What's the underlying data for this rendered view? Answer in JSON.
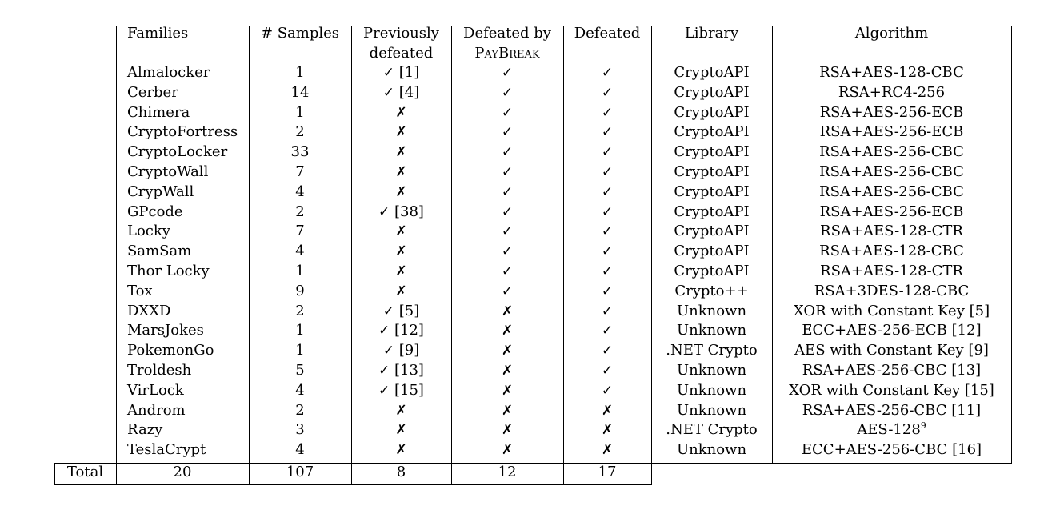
{
  "headers": {
    "families": "Families",
    "samples": "# Samples",
    "prev_line1": "Previously",
    "prev_line2": "defeated",
    "paybreak_line1": "Defeated by",
    "paybreak_line2": "PayBreak",
    "defeated": "Defeated",
    "library": "Library",
    "algorithm": "Algorithm"
  },
  "rows": [
    {
      "family": "Almalocker",
      "samples": "1",
      "prev": "✓ [1]",
      "paybreak": "✓",
      "defeated": "✓",
      "library": "CryptoAPI",
      "algorithm": "RSA+AES-128-CBC"
    },
    {
      "family": "Cerber",
      "samples": "14",
      "prev": "✓ [4]",
      "paybreak": "✓",
      "defeated": "✓",
      "library": "CryptoAPI",
      "algorithm": "RSA+RC4-256"
    },
    {
      "family": "Chimera",
      "samples": "1",
      "prev": "✗",
      "paybreak": "✓",
      "defeated": "✓",
      "library": "CryptoAPI",
      "algorithm": "RSA+AES-256-ECB"
    },
    {
      "family": "CryptoFortress",
      "samples": "2",
      "prev": "✗",
      "paybreak": "✓",
      "defeated": "✓",
      "library": "CryptoAPI",
      "algorithm": "RSA+AES-256-ECB"
    },
    {
      "family": "CryptoLocker",
      "samples": "33",
      "prev": "✗",
      "paybreak": "✓",
      "defeated": "✓",
      "library": "CryptoAPI",
      "algorithm": "RSA+AES-256-CBC"
    },
    {
      "family": "CryptoWall",
      "samples": "7",
      "prev": "✗",
      "paybreak": "✓",
      "defeated": "✓",
      "library": "CryptoAPI",
      "algorithm": "RSA+AES-256-CBC"
    },
    {
      "family": "CrypWall",
      "samples": "4",
      "prev": "✗",
      "paybreak": "✓",
      "defeated": "✓",
      "library": "CryptoAPI",
      "algorithm": "RSA+AES-256-CBC"
    },
    {
      "family": "GPcode",
      "samples": "2",
      "prev": "✓ [38]",
      "paybreak": "✓",
      "defeated": "✓",
      "library": "CryptoAPI",
      "algorithm": "RSA+AES-256-ECB"
    },
    {
      "family": "Locky",
      "samples": "7",
      "prev": "✗",
      "paybreak": "✓",
      "defeated": "✓",
      "library": "CryptoAPI",
      "algorithm": "RSA+AES-128-CTR"
    },
    {
      "family": "SamSam",
      "samples": "4",
      "prev": "✗",
      "paybreak": "✓",
      "defeated": "✓",
      "library": "CryptoAPI",
      "algorithm": "RSA+AES-128-CBC"
    },
    {
      "family": "Thor Locky",
      "samples": "1",
      "prev": "✗",
      "paybreak": "✓",
      "defeated": "✓",
      "library": "CryptoAPI",
      "algorithm": "RSA+AES-128-CTR"
    },
    {
      "family": "Tox",
      "samples": "9",
      "prev": "✗",
      "paybreak": "✓",
      "defeated": "✓",
      "library": "Crypto++",
      "algorithm": "RSA+3DES-128-CBC"
    },
    {
      "family": "DXXD",
      "samples": "2",
      "prev": "✓ [5]",
      "paybreak": "✗",
      "defeated": "✓",
      "library": "Unknown",
      "algorithm": "XOR with Constant Key [5]"
    },
    {
      "family": "MarsJokes",
      "samples": "1",
      "prev": "✓ [12]",
      "paybreak": "✗",
      "defeated": "✓",
      "library": "Unknown",
      "algorithm": "ECC+AES-256-ECB [12]"
    },
    {
      "family": "PokemonGo",
      "samples": "1",
      "prev": "✓ [9]",
      "paybreak": "✗",
      "defeated": "✓",
      "library": ".NET Crypto",
      "algorithm": "AES with Constant Key  [9]"
    },
    {
      "family": "Troldesh",
      "samples": "5",
      "prev": "✓ [13]",
      "paybreak": "✗",
      "defeated": "✓",
      "library": "Unknown",
      "algorithm": "RSA+AES-256-CBC [13]"
    },
    {
      "family": "VirLock",
      "samples": "4",
      "prev": "✓ [15]",
      "paybreak": "✗",
      "defeated": "✓",
      "library": "Unknown",
      "algorithm": "XOR with Constant Key [15]"
    },
    {
      "family": "Androm",
      "samples": "2",
      "prev": "✗",
      "paybreak": "✗",
      "defeated": "✗",
      "library": "Unknown",
      "algorithm": "RSA+AES-256-CBC [11]"
    },
    {
      "family": "Razy",
      "samples": "3",
      "prev": "✗",
      "paybreak": "✗",
      "defeated": "✗",
      "library": ".NET Crypto",
      "algorithm": "AES-128",
      "algorithm_sup": "9"
    },
    {
      "family": "TeslaCrypt",
      "samples": "4",
      "prev": "✗",
      "paybreak": "✗",
      "defeated": "✗",
      "library": "Unknown",
      "algorithm": "ECC+AES-256-CBC [16]"
    }
  ],
  "total": {
    "label": "Total",
    "families": "20",
    "samples": "107",
    "prev": "8",
    "paybreak": "12",
    "defeated": "17"
  }
}
